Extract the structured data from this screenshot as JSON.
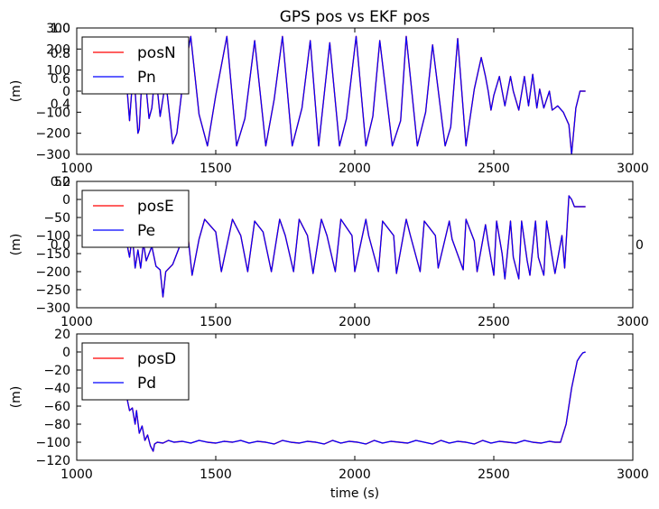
{
  "chart_data": [
    {
      "type": "line",
      "title": "GPS pos vs EKF pos",
      "ylabel": "(m)",
      "xlabel": "",
      "xlim": [
        1000,
        3000
      ],
      "ylim": [
        -300,
        300
      ],
      "xticks": [
        "1000",
        "1500",
        "2000",
        "2500",
        "3000"
      ],
      "yticks": [
        "300",
        "200",
        "100",
        "0",
        "−100",
        "−200",
        "−300"
      ],
      "overlay_ticks": [
        "1.0",
        "0.8",
        "0.6",
        "0.4"
      ],
      "legend": {
        "position": "upper-left",
        "entries": [
          "posN",
          "Pn"
        ]
      },
      "series": [
        {
          "name": "posN",
          "color": "#ff0000"
        },
        {
          "name": "Pn",
          "color": "#0000ff"
        }
      ],
      "x": [
        1180,
        1190,
        1200,
        1210,
        1220,
        1225,
        1235,
        1250,
        1260,
        1270,
        1280,
        1290,
        1300,
        1320,
        1345,
        1360,
        1385,
        1410,
        1440,
        1470,
        1500,
        1540,
        1575,
        1605,
        1640,
        1680,
        1710,
        1740,
        1775,
        1810,
        1840,
        1870,
        1910,
        1945,
        1970,
        2005,
        2040,
        2065,
        2090,
        2135,
        2165,
        2185,
        2225,
        2255,
        2280,
        2325,
        2345,
        2370,
        2400,
        2430,
        2455,
        2470,
        2480,
        2490,
        2500,
        2520,
        2540,
        2560,
        2570,
        2590,
        2610,
        2625,
        2640,
        2655,
        2665,
        2680,
        2700,
        2710,
        2720,
        2730,
        2750,
        2770,
        2780,
        2795,
        2810,
        2830
      ],
      "y": [
        30,
        -140,
        40,
        0,
        -200,
        -180,
        80,
        10,
        -130,
        -80,
        60,
        10,
        -120,
        50,
        -250,
        -200,
        80,
        260,
        -110,
        -260,
        -20,
        260,
        -260,
        -130,
        240,
        -260,
        -40,
        260,
        -260,
        -80,
        240,
        -260,
        230,
        -260,
        -130,
        260,
        -260,
        -120,
        240,
        -260,
        -140,
        260,
        -260,
        -100,
        220,
        -260,
        -170,
        250,
        -260,
        10,
        160,
        70,
        0,
        -90,
        -20,
        70,
        -70,
        70,
        0,
        -90,
        70,
        -70,
        80,
        -80,
        10,
        -80,
        0,
        -90,
        -80,
        -70,
        -100,
        -160,
        -300,
        -80,
        0,
        0
      ]
    },
    {
      "type": "line",
      "title": "",
      "ylabel": "(m)",
      "xlabel": "",
      "xlim": [
        1000,
        3000
      ],
      "ylim": [
        -300,
        50
      ],
      "xticks": [
        "1000",
        "1500",
        "2000",
        "2500",
        "3000"
      ],
      "yticks": [
        "50",
        "0",
        "−50",
        "−100",
        "−150",
        "−200",
        "−250",
        "−300"
      ],
      "overlay_ticks": [
        "0.2",
        "0.0"
      ],
      "legend": {
        "position": "upper-left",
        "entries": [
          "posE",
          "Pe"
        ]
      },
      "series": [
        {
          "name": "posE",
          "color": "#ff0000"
        },
        {
          "name": "Pe",
          "color": "#0000ff"
        }
      ],
      "x": [
        1180,
        1190,
        1200,
        1210,
        1220,
        1230,
        1240,
        1250,
        1270,
        1285,
        1300,
        1310,
        1320,
        1345,
        1370,
        1400,
        1415,
        1440,
        1460,
        1500,
        1520,
        1560,
        1590,
        1615,
        1640,
        1670,
        1700,
        1730,
        1750,
        1780,
        1800,
        1830,
        1850,
        1880,
        1900,
        1930,
        1950,
        1990,
        2000,
        2040,
        2050,
        2085,
        2100,
        2140,
        2150,
        2185,
        2200,
        2235,
        2250,
        2290,
        2300,
        2340,
        2350,
        2390,
        2400,
        2430,
        2440,
        2470,
        2480,
        2500,
        2510,
        2530,
        2540,
        2560,
        2570,
        2590,
        2600,
        2620,
        2630,
        2650,
        2660,
        2680,
        2690,
        2710,
        2720,
        2745,
        2755,
        2770,
        2780,
        2790,
        2800,
        2810,
        2830
      ],
      "y": [
        -120,
        -160,
        -100,
        -190,
        -140,
        -190,
        -120,
        -170,
        -130,
        -185,
        -195,
        -270,
        -200,
        -180,
        -130,
        -100,
        -210,
        -110,
        -55,
        -90,
        -200,
        -55,
        -100,
        -200,
        -60,
        -90,
        -200,
        -55,
        -100,
        -200,
        -55,
        -100,
        -205,
        -55,
        -100,
        -200,
        -55,
        -100,
        -200,
        -55,
        -100,
        -200,
        -60,
        -100,
        -205,
        -55,
        -100,
        -200,
        -60,
        -100,
        -190,
        -60,
        -110,
        -195,
        -55,
        -115,
        -200,
        -70,
        -120,
        -210,
        -60,
        -150,
        -220,
        -60,
        -160,
        -220,
        -60,
        -170,
        -210,
        -60,
        -160,
        -210,
        -60,
        -160,
        -205,
        -100,
        -190,
        10,
        0,
        -20,
        -20,
        -20,
        -20
      ]
    },
    {
      "type": "line",
      "title": "",
      "ylabel": "(m)",
      "xlabel": "time (s)",
      "xlim": [
        1000,
        3000
      ],
      "ylim": [
        -120,
        20
      ],
      "xticks": [
        "1000",
        "1500",
        "2000",
        "2500",
        "3000"
      ],
      "yticks": [
        "20",
        "0",
        "−20",
        "−40",
        "−60",
        "−80",
        "−100",
        "−120"
      ],
      "overlay_ticks": [],
      "legend": {
        "position": "upper-left",
        "entries": [
          "posD",
          "Pd"
        ]
      },
      "series": [
        {
          "name": "posD",
          "color": "#ff0000"
        },
        {
          "name": "Pd",
          "color": "#0000ff"
        }
      ],
      "x": [
        1180,
        1190,
        1200,
        1210,
        1215,
        1225,
        1235,
        1245,
        1255,
        1265,
        1275,
        1280,
        1290,
        1310,
        1330,
        1350,
        1380,
        1410,
        1440,
        1470,
        1500,
        1530,
        1560,
        1590,
        1620,
        1650,
        1680,
        1710,
        1740,
        1770,
        1800,
        1830,
        1860,
        1890,
        1920,
        1950,
        1980,
        2010,
        2040,
        2070,
        2100,
        2130,
        2160,
        2190,
        2220,
        2250,
        2280,
        2310,
        2340,
        2370,
        2400,
        2430,
        2460,
        2490,
        2520,
        2550,
        2580,
        2610,
        2640,
        2670,
        2700,
        2720,
        2740,
        2760,
        2780,
        2800,
        2810,
        2820,
        2830
      ],
      "y": [
        -50,
        -65,
        -62,
        -80,
        -65,
        -90,
        -82,
        -98,
        -92,
        -104,
        -110,
        -102,
        -100,
        -101,
        -98,
        -100,
        -99,
        -101,
        -98,
        -100,
        -101,
        -99,
        -100,
        -98,
        -101,
        -99,
        -100,
        -102,
        -98,
        -100,
        -101,
        -99,
        -100,
        -102,
        -98,
        -101,
        -99,
        -100,
        -102,
        -98,
        -101,
        -99,
        -100,
        -101,
        -98,
        -100,
        -102,
        -98,
        -101,
        -99,
        -100,
        -102,
        -98,
        -101,
        -99,
        -100,
        -101,
        -98,
        -100,
        -101,
        -99,
        -100,
        -100,
        -80,
        -40,
        -10,
        -5,
        -1,
        0
      ]
    }
  ]
}
